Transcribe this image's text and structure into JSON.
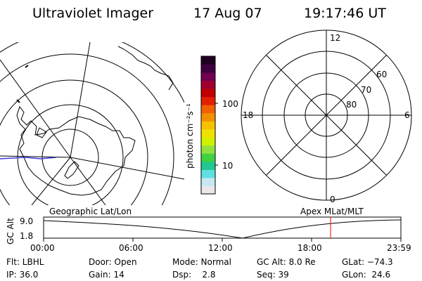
{
  "header": {
    "title": "Ultraviolet Imager",
    "date": "17 Aug 07",
    "time": "19:17:46 UT"
  },
  "geo_map": {
    "label": "Geographic Lat/Lon"
  },
  "colorbar": {
    "unit_label": "photon cm⁻²s⁻¹",
    "tick_100": "100",
    "tick_10": "10",
    "colors": [
      "#e8e8e8",
      "#c8e8f0",
      "#60e0e0",
      "#20c890",
      "#40d040",
      "#90e040",
      "#d0f000",
      "#f0e000",
      "#f8c000",
      "#f09000",
      "#f06000",
      "#e02000",
      "#c00000",
      "#a00030",
      "#700050",
      "#400040",
      "#200020"
    ]
  },
  "polar_plot": {
    "label": "Apex MLat/MLT",
    "mlt_12": "12",
    "mlt_18": "18",
    "mlt_6": "6",
    "mlt_0": "0",
    "lat_60": "60",
    "lat_70": "70",
    "lat_80": "80"
  },
  "altitude_strip": {
    "axis_label": "GC Alt",
    "y_top": "9.0",
    "y_bottom": "1.8",
    "x_ticks": [
      "00:00",
      "06:00",
      "12:00",
      "18:00",
      "23:59"
    ],
    "marker_color": "#ff0000"
  },
  "footer": {
    "flt": "Flt: LBHL",
    "door": "Door: Open",
    "mode": "Mode: Normal",
    "gc_alt": "GC Alt: 8.0 Re",
    "glat": "GLat: −74.3",
    "ip": "IP: 36.0",
    "gain": "Gain: 14",
    "dsp": "Dsp:    2.8",
    "seq": "Seq: 39",
    "glon": "GLon:  24.6"
  }
}
